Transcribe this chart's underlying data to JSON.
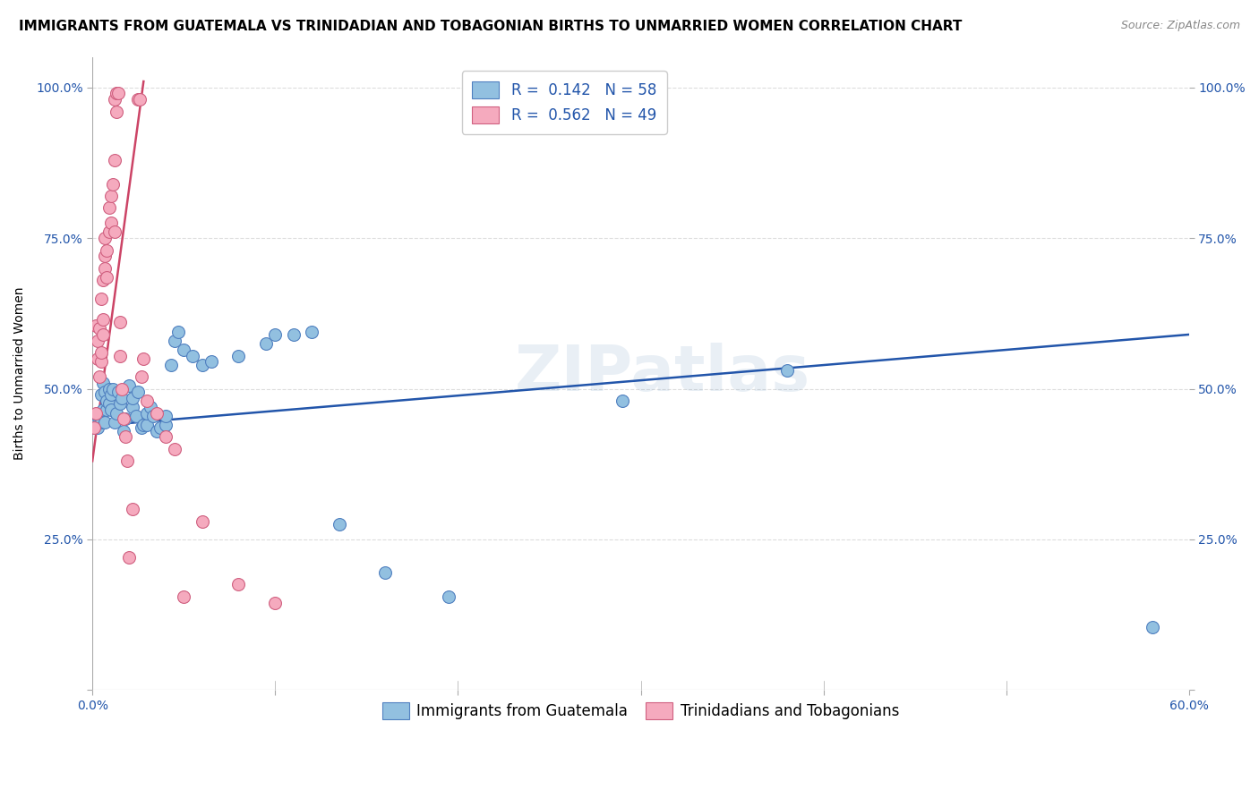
{
  "title": "IMMIGRANTS FROM GUATEMALA VS TRINIDADIAN AND TOBAGONIAN BIRTHS TO UNMARRIED WOMEN CORRELATION CHART",
  "source": "Source: ZipAtlas.com",
  "ylabel": "Births to Unmarried Women",
  "xlim": [
    0.0,
    0.6
  ],
  "ylim": [
    0.0,
    1.05
  ],
  "yticks": [
    0.0,
    0.25,
    0.5,
    0.75,
    1.0
  ],
  "ytick_labels_left": [
    "",
    "25.0%",
    "50.0%",
    "75.0%",
    "100.0%"
  ],
  "ytick_labels_right": [
    "",
    "25.0%",
    "50.0%",
    "75.0%",
    "100.0%"
  ],
  "xticks": [
    0.0,
    0.1,
    0.2,
    0.3,
    0.4,
    0.5,
    0.6
  ],
  "xtick_labels": [
    "0.0%",
    "",
    "",
    "",
    "",
    "",
    "60.0%"
  ],
  "watermark": "ZIPatlas",
  "legend_blue_label": "R =  0.142   N = 58",
  "legend_pink_label": "R =  0.562   N = 49",
  "legend_label_blue": "Immigrants from Guatemala",
  "legend_label_pink": "Trinidadians and Tobagonians",
  "blue_color": "#92C0E0",
  "pink_color": "#F5AABE",
  "blue_edge_color": "#5080C0",
  "pink_edge_color": "#D06080",
  "blue_line_color": "#2255AA",
  "pink_line_color": "#CC4466",
  "blue_scatter": [
    [
      0.001,
      0.435
    ],
    [
      0.002,
      0.445
    ],
    [
      0.003,
      0.435
    ],
    [
      0.003,
      0.455
    ],
    [
      0.004,
      0.455
    ],
    [
      0.005,
      0.445
    ],
    [
      0.005,
      0.49
    ],
    [
      0.006,
      0.465
    ],
    [
      0.006,
      0.51
    ],
    [
      0.007,
      0.445
    ],
    [
      0.007,
      0.495
    ],
    [
      0.008,
      0.465
    ],
    [
      0.008,
      0.48
    ],
    [
      0.009,
      0.5
    ],
    [
      0.009,
      0.475
    ],
    [
      0.01,
      0.49
    ],
    [
      0.01,
      0.465
    ],
    [
      0.011,
      0.5
    ],
    [
      0.012,
      0.445
    ],
    [
      0.013,
      0.46
    ],
    [
      0.014,
      0.495
    ],
    [
      0.015,
      0.475
    ],
    [
      0.016,
      0.485
    ],
    [
      0.017,
      0.43
    ],
    [
      0.018,
      0.45
    ],
    [
      0.02,
      0.505
    ],
    [
      0.022,
      0.47
    ],
    [
      0.022,
      0.485
    ],
    [
      0.024,
      0.455
    ],
    [
      0.025,
      0.495
    ],
    [
      0.027,
      0.435
    ],
    [
      0.028,
      0.44
    ],
    [
      0.03,
      0.44
    ],
    [
      0.03,
      0.46
    ],
    [
      0.032,
      0.47
    ],
    [
      0.033,
      0.455
    ],
    [
      0.035,
      0.43
    ],
    [
      0.037,
      0.435
    ],
    [
      0.04,
      0.44
    ],
    [
      0.04,
      0.455
    ],
    [
      0.043,
      0.54
    ],
    [
      0.045,
      0.58
    ],
    [
      0.047,
      0.595
    ],
    [
      0.05,
      0.565
    ],
    [
      0.055,
      0.555
    ],
    [
      0.06,
      0.54
    ],
    [
      0.065,
      0.545
    ],
    [
      0.08,
      0.555
    ],
    [
      0.095,
      0.575
    ],
    [
      0.1,
      0.59
    ],
    [
      0.11,
      0.59
    ],
    [
      0.12,
      0.595
    ],
    [
      0.135,
      0.275
    ],
    [
      0.16,
      0.195
    ],
    [
      0.195,
      0.155
    ],
    [
      0.29,
      0.48
    ],
    [
      0.38,
      0.53
    ],
    [
      0.58,
      0.105
    ]
  ],
  "pink_scatter": [
    [
      0.001,
      0.435
    ],
    [
      0.002,
      0.46
    ],
    [
      0.002,
      0.605
    ],
    [
      0.003,
      0.55
    ],
    [
      0.003,
      0.58
    ],
    [
      0.004,
      0.6
    ],
    [
      0.004,
      0.52
    ],
    [
      0.005,
      0.545
    ],
    [
      0.005,
      0.56
    ],
    [
      0.005,
      0.65
    ],
    [
      0.006,
      0.59
    ],
    [
      0.006,
      0.615
    ],
    [
      0.006,
      0.68
    ],
    [
      0.007,
      0.72
    ],
    [
      0.007,
      0.75
    ],
    [
      0.007,
      0.7
    ],
    [
      0.008,
      0.685
    ],
    [
      0.008,
      0.73
    ],
    [
      0.009,
      0.76
    ],
    [
      0.009,
      0.8
    ],
    [
      0.01,
      0.775
    ],
    [
      0.01,
      0.82
    ],
    [
      0.011,
      0.84
    ],
    [
      0.012,
      0.88
    ],
    [
      0.012,
      0.76
    ],
    [
      0.012,
      0.98
    ],
    [
      0.013,
      0.96
    ],
    [
      0.013,
      0.99
    ],
    [
      0.014,
      0.99
    ],
    [
      0.015,
      0.555
    ],
    [
      0.015,
      0.61
    ],
    [
      0.016,
      0.5
    ],
    [
      0.017,
      0.45
    ],
    [
      0.018,
      0.42
    ],
    [
      0.019,
      0.38
    ],
    [
      0.02,
      0.22
    ],
    [
      0.022,
      0.3
    ],
    [
      0.025,
      0.98
    ],
    [
      0.026,
      0.98
    ],
    [
      0.027,
      0.52
    ],
    [
      0.028,
      0.55
    ],
    [
      0.03,
      0.48
    ],
    [
      0.035,
      0.46
    ],
    [
      0.04,
      0.42
    ],
    [
      0.045,
      0.4
    ],
    [
      0.05,
      0.155
    ],
    [
      0.06,
      0.28
    ],
    [
      0.08,
      0.175
    ],
    [
      0.1,
      0.145
    ]
  ],
  "blue_line_x": [
    0.0,
    0.6
  ],
  "blue_line_y": [
    0.438,
    0.59
  ],
  "pink_line_x": [
    0.0,
    0.028
  ],
  "pink_line_y": [
    0.38,
    1.01
  ],
  "title_fontsize": 11,
  "source_fontsize": 9,
  "axis_label_fontsize": 10,
  "tick_fontsize": 10,
  "legend_fontsize": 12,
  "watermark_fontsize": 52,
  "watermark_alpha": 0.18,
  "watermark_color": "#88AACC",
  "background_color": "#FFFFFF",
  "grid_color": "#DDDDDD",
  "scatter_size": 100,
  "scatter_linewidth": 0.8
}
